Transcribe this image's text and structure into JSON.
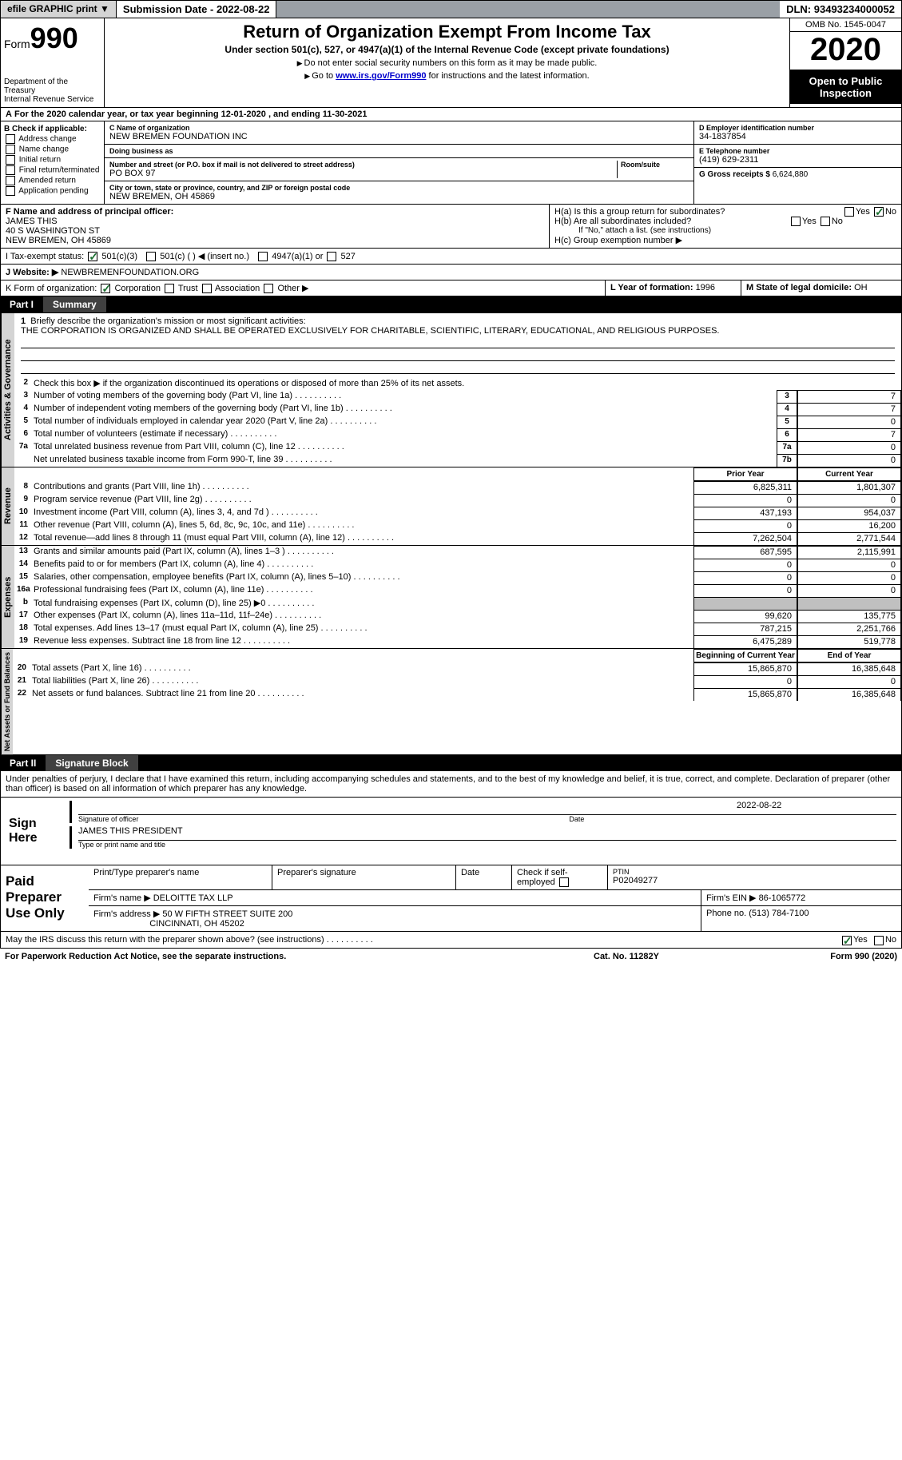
{
  "topbar": {
    "efile": "efile GRAPHIC print",
    "sub_label": "Submission Date - ",
    "sub_date": "2022-08-22",
    "dln_label": "DLN: ",
    "dln": "93493234000052"
  },
  "header": {
    "form_word": "Form",
    "form_num": "990",
    "title": "Return of Organization Exempt From Income Tax",
    "subtitle": "Under section 501(c), 527, or 4947(a)(1) of the Internal Revenue Code (except private foundations)",
    "note1": "Do not enter social security numbers on this form as it may be made public.",
    "note2_pre": "Go to ",
    "note2_link": "www.irs.gov/Form990",
    "note2_post": " for instructions and the latest information.",
    "dept": "Department of the Treasury\nInternal Revenue Service",
    "omb": "OMB No. 1545-0047",
    "year": "2020",
    "inspect": "Open to Public Inspection"
  },
  "line_a": "For the 2020 calendar year, or tax year beginning 12-01-2020    , and ending 11-30-2021",
  "section_b": {
    "title": "B Check if applicable:",
    "opts": [
      "Address change",
      "Name change",
      "Initial return",
      "Final return/terminated",
      "Amended return",
      "Application pending"
    ]
  },
  "section_c": {
    "name_lbl": "C Name of organization",
    "name": "NEW BREMEN FOUNDATION INC",
    "dba_lbl": "Doing business as",
    "dba": "",
    "addr_lbl": "Number and street (or P.O. box if mail is not delivered to street address)",
    "room_lbl": "Room/suite",
    "addr": "PO BOX 97",
    "city_lbl": "City or town, state or province, country, and ZIP or foreign postal code",
    "city": "NEW BREMEN, OH  45869"
  },
  "section_d": {
    "lbl": "D Employer identification number",
    "val": "34-1837854"
  },
  "section_e": {
    "lbl": "E Telephone number",
    "val": "(419) 629-2311"
  },
  "section_g": {
    "lbl": "G Gross receipts $ ",
    "val": "6,624,880"
  },
  "section_f": {
    "lbl": "F  Name and address of principal officer:",
    "name": "JAMES THIS",
    "addr1": "40 S WASHINGTON ST",
    "addr2": "NEW BREMEN, OH  45869"
  },
  "section_h": {
    "a": "H(a)  Is this a group return for subordinates?",
    "b": "H(b)  Are all subordinates included?",
    "b_note": "If \"No,\" attach a list. (see instructions)",
    "c": "H(c)  Group exemption number ▶",
    "yes": "Yes",
    "no": "No"
  },
  "tax_exempt": {
    "lbl": "I    Tax-exempt status:",
    "o1": "501(c)(3)",
    "o2": "501(c) (  ) ◀ (insert no.)",
    "o3": "4947(a)(1) or",
    "o4": "527"
  },
  "website": {
    "lbl": "J   Website: ▶",
    "val": "NEWBREMENFOUNDATION.ORG"
  },
  "section_k": {
    "lbl": "K Form of organization:",
    "opts": [
      "Corporation",
      "Trust",
      "Association",
      "Other ▶"
    ]
  },
  "section_l": {
    "lbl": "L Year of formation: ",
    "val": "1996"
  },
  "section_m": {
    "lbl": "M State of legal domicile: ",
    "val": "OH"
  },
  "parts": {
    "p1": {
      "num": "Part I",
      "title": "Summary"
    },
    "p2": {
      "num": "Part II",
      "title": "Signature Block"
    }
  },
  "summary": {
    "mission_lbl": "Briefly describe the organization's mission or most significant activities:",
    "mission": "THE CORPORATION IS ORGANIZED AND SHALL BE OPERATED EXCLUSIVELY FOR CHARITABLE, SCIENTIFIC, LITERARY, EDUCATIONAL, AND RELIGIOUS PURPOSES.",
    "line2": "Check this box ▶      if the organization discontinued its operations or disposed of more than 25% of its net assets.",
    "governance": [
      {
        "n": "3",
        "d": "Number of voting members of the governing body (Part VI, line 1a)",
        "b": "3",
        "v": "7"
      },
      {
        "n": "4",
        "d": "Number of independent voting members of the governing body (Part VI, line 1b)",
        "b": "4",
        "v": "7"
      },
      {
        "n": "5",
        "d": "Total number of individuals employed in calendar year 2020 (Part V, line 2a)",
        "b": "5",
        "v": "0"
      },
      {
        "n": "6",
        "d": "Total number of volunteers (estimate if necessary)",
        "b": "6",
        "v": "7"
      },
      {
        "n": "7a",
        "d": "Total unrelated business revenue from Part VIII, column (C), line 12",
        "b": "7a",
        "v": "0"
      },
      {
        "n": "",
        "d": "Net unrelated business taxable income from Form 990-T, line 39",
        "b": "7b",
        "v": "0"
      }
    ],
    "col_hdr": {
      "prior": "Prior Year",
      "current": "Current Year",
      "beg": "Beginning of Current Year",
      "end": "End of Year"
    },
    "revenue": [
      {
        "n": "8",
        "d": "Contributions and grants (Part VIII, line 1h)",
        "p": "6,825,311",
        "c": "1,801,307"
      },
      {
        "n": "9",
        "d": "Program service revenue (Part VIII, line 2g)",
        "p": "0",
        "c": "0"
      },
      {
        "n": "10",
        "d": "Investment income (Part VIII, column (A), lines 3, 4, and 7d )",
        "p": "437,193",
        "c": "954,037"
      },
      {
        "n": "11",
        "d": "Other revenue (Part VIII, column (A), lines 5, 6d, 8c, 9c, 10c, and 11e)",
        "p": "0",
        "c": "16,200"
      },
      {
        "n": "12",
        "d": "Total revenue—add lines 8 through 11 (must equal Part VIII, column (A), line 12)",
        "p": "7,262,504",
        "c": "2,771,544"
      }
    ],
    "expenses": [
      {
        "n": "13",
        "d": "Grants and similar amounts paid (Part IX, column (A), lines 1–3 )",
        "p": "687,595",
        "c": "2,115,991"
      },
      {
        "n": "14",
        "d": "Benefits paid to or for members (Part IX, column (A), line 4)",
        "p": "0",
        "c": "0"
      },
      {
        "n": "15",
        "d": "Salaries, other compensation, employee benefits (Part IX, column (A), lines 5–10)",
        "p": "0",
        "c": "0"
      },
      {
        "n": "16a",
        "d": "Professional fundraising fees (Part IX, column (A), line 11e)",
        "p": "0",
        "c": "0"
      },
      {
        "n": "b",
        "d": "Total fundraising expenses (Part IX, column (D), line 25) ▶0",
        "p": "",
        "c": "",
        "grey": true
      },
      {
        "n": "17",
        "d": "Other expenses (Part IX, column (A), lines 11a–11d, 11f–24e)",
        "p": "99,620",
        "c": "135,775"
      },
      {
        "n": "18",
        "d": "Total expenses. Add lines 13–17 (must equal Part IX, column (A), line 25)",
        "p": "787,215",
        "c": "2,251,766"
      },
      {
        "n": "19",
        "d": "Revenue less expenses. Subtract line 18 from line 12",
        "p": "6,475,289",
        "c": "519,778"
      }
    ],
    "netassets": [
      {
        "n": "20",
        "d": "Total assets (Part X, line 16)",
        "p": "15,865,870",
        "c": "16,385,648"
      },
      {
        "n": "21",
        "d": "Total liabilities (Part X, line 26)",
        "p": "0",
        "c": "0"
      },
      {
        "n": "22",
        "d": "Net assets or fund balances. Subtract line 21 from line 20",
        "p": "15,865,870",
        "c": "16,385,648"
      }
    ],
    "tabs": {
      "gov": "Activities & Governance",
      "rev": "Revenue",
      "exp": "Expenses",
      "net": "Net Assets or Fund Balances"
    }
  },
  "sig": {
    "decl": "Under penalties of perjury, I declare that I have examined this return, including accompanying schedules and statements, and to the best of my knowledge and belief, it is true, correct, and complete. Declaration of preparer (other than officer) is based on all information of which preparer has any knowledge.",
    "sign_here": "Sign Here",
    "date": "2022-08-22",
    "sig_lbl": "Signature of officer",
    "date_lbl": "Date",
    "officer": "JAMES THIS  PRESIDENT",
    "type_lbl": "Type or print name and title"
  },
  "prep": {
    "title": "Paid Preparer Use Only",
    "h": [
      "Print/Type preparer's name",
      "Preparer's signature",
      "Date",
      "Check      if self-employed",
      "PTIN"
    ],
    "ptin": "P02049277",
    "firm_lbl": "Firm's name    ▶ ",
    "firm": "DELOITTE TAX LLP",
    "ein_lbl": "Firm's EIN ▶ ",
    "ein": "86-1065772",
    "addr_lbl": "Firm's address ▶ ",
    "addr1": "50 W FIFTH STREET SUITE 200",
    "addr2": "CINCINNATI, OH  45202",
    "phone_lbl": "Phone no. ",
    "phone": "(513) 784-7100",
    "discuss": "May the IRS discuss this return with the preparer shown above? (see instructions)",
    "yes": "Yes",
    "no": "No"
  },
  "footer": {
    "left": "For Paperwork Reduction Act Notice, see the separate instructions.",
    "mid": "Cat. No. 11282Y",
    "right": "Form 990 (2020)"
  }
}
